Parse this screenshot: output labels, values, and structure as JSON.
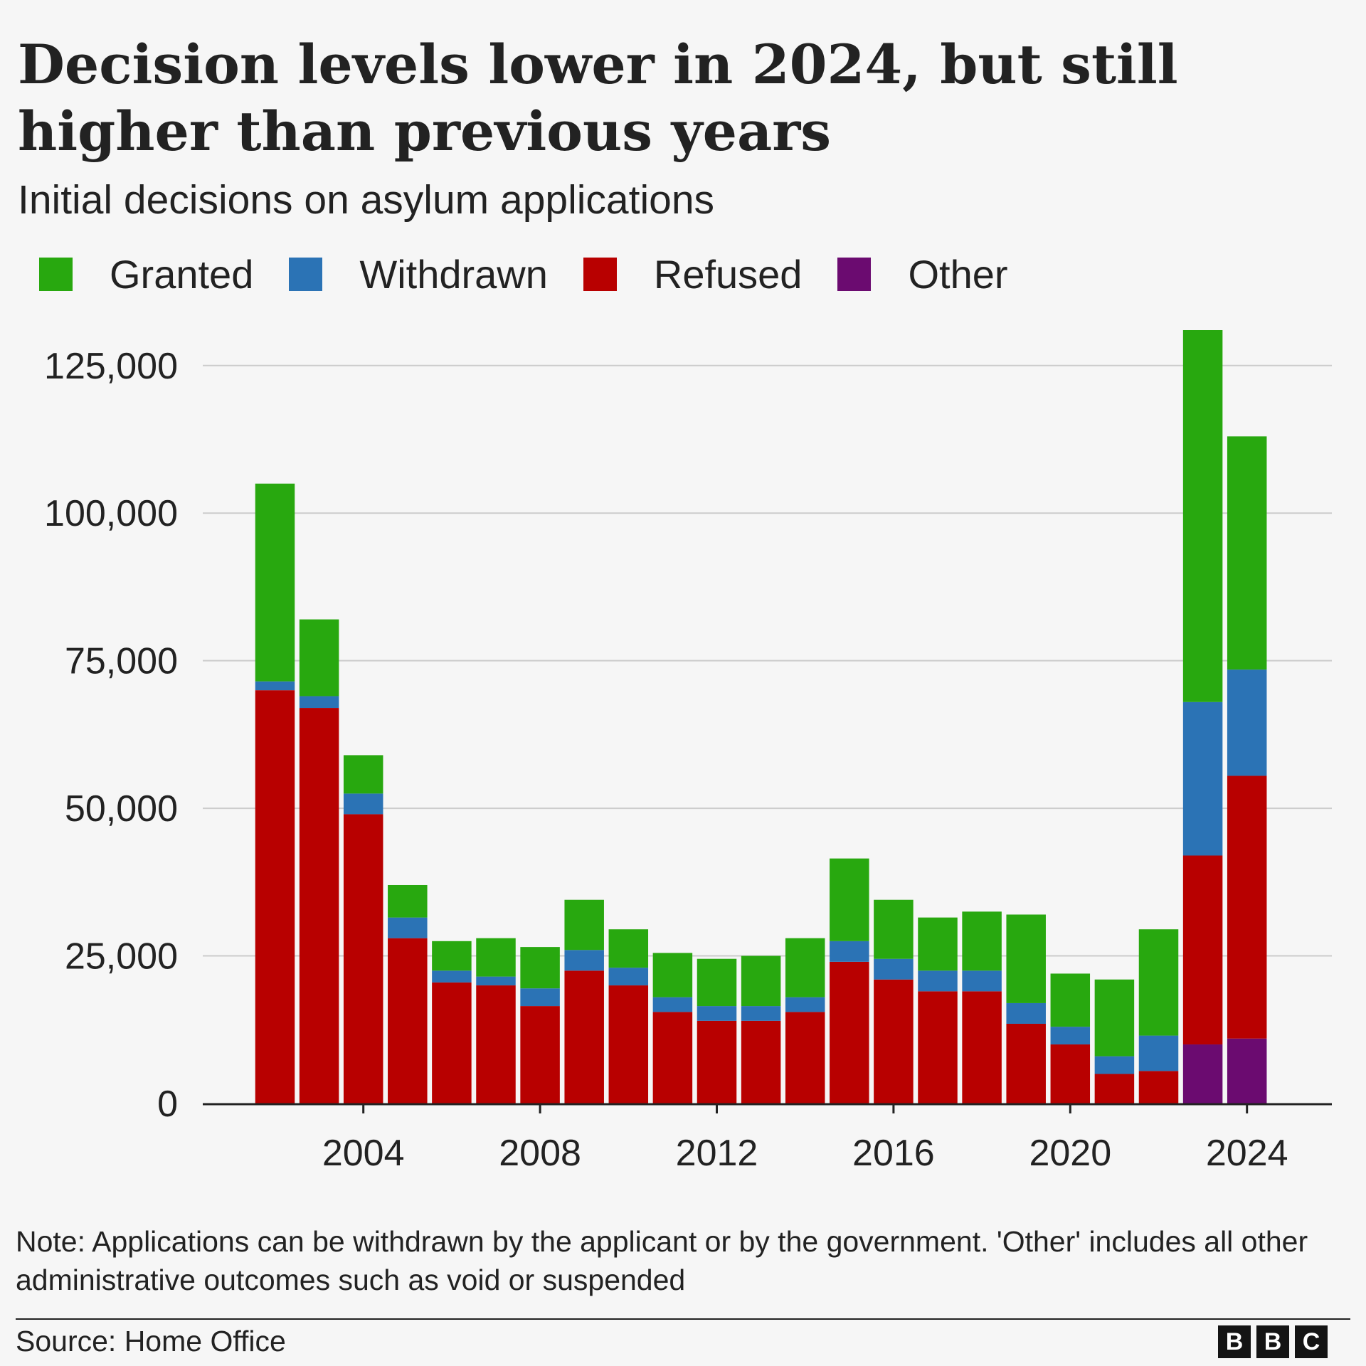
{
  "header": {
    "title": "Decision levels lower in 2024, but still higher than previous years",
    "subtitle": "Initial decisions on asylum applications"
  },
  "legend": [
    {
      "label": "Granted",
      "color": "#28a80f"
    },
    {
      "label": "Withdrawn",
      "color": "#2b73b5"
    },
    {
      "label": "Refused",
      "color": "#b80000"
    },
    {
      "label": "Other",
      "color": "#6b0b70"
    }
  ],
  "chart_data": {
    "type": "bar",
    "stacked": true,
    "title": "Decision levels lower in 2024, but still higher than previous years",
    "subtitle": "Initial decisions on asylum applications",
    "xlabel": "",
    "ylabel": "",
    "ylim": [
      0,
      131000
    ],
    "yticks": [
      0,
      25000,
      50000,
      75000,
      100000,
      125000
    ],
    "ytick_labels": [
      "0",
      "25,000",
      "50,000",
      "75,000",
      "100,000",
      "125,000"
    ],
    "xticks": [
      2004,
      2008,
      2012,
      2016,
      2020,
      2024
    ],
    "xtick_labels": [
      "2004",
      "2008",
      "2012",
      "2016",
      "2020",
      "2024"
    ],
    "grid": true,
    "categories": [
      2002,
      2003,
      2004,
      2005,
      2006,
      2007,
      2008,
      2009,
      2010,
      2011,
      2012,
      2013,
      2014,
      2015,
      2016,
      2017,
      2018,
      2019,
      2020,
      2021,
      2022,
      2023,
      2024
    ],
    "series": [
      {
        "name": "Other",
        "color": "#6b0b70",
        "values": [
          0,
          0,
          0,
          0,
          0,
          0,
          0,
          0,
          0,
          0,
          0,
          0,
          0,
          0,
          0,
          0,
          0,
          0,
          0,
          0,
          0,
          10000,
          11000
        ]
      },
      {
        "name": "Refused",
        "color": "#b80000",
        "values": [
          70000,
          67000,
          49000,
          28000,
          20500,
          20000,
          16500,
          22500,
          20000,
          15500,
          14000,
          14000,
          15500,
          24000,
          21000,
          19000,
          19000,
          13500,
          10000,
          5000,
          5500,
          32000,
          44500
        ]
      },
      {
        "name": "Withdrawn",
        "color": "#2b73b5",
        "values": [
          1500,
          2000,
          3500,
          3500,
          2000,
          1500,
          3000,
          3500,
          3000,
          2500,
          2500,
          2500,
          2500,
          3500,
          3500,
          3500,
          3500,
          3500,
          3000,
          3000,
          6000,
          26000,
          18000
        ]
      },
      {
        "name": "Granted",
        "color": "#28a80f",
        "values": [
          33500,
          13000,
          6500,
          5500,
          5000,
          6500,
          7000,
          8500,
          6500,
          7500,
          8000,
          8500,
          10000,
          14000,
          10000,
          9000,
          10000,
          15000,
          9000,
          13000,
          18000,
          63000,
          39500
        ]
      }
    ]
  },
  "note": "Note: Applications can be withdrawn by the applicant or by the government. 'Other' includes all other administrative outcomes such as void or suspended",
  "source": "Source: Home Office",
  "logo": {
    "letters": [
      "B",
      "B",
      "C"
    ]
  }
}
